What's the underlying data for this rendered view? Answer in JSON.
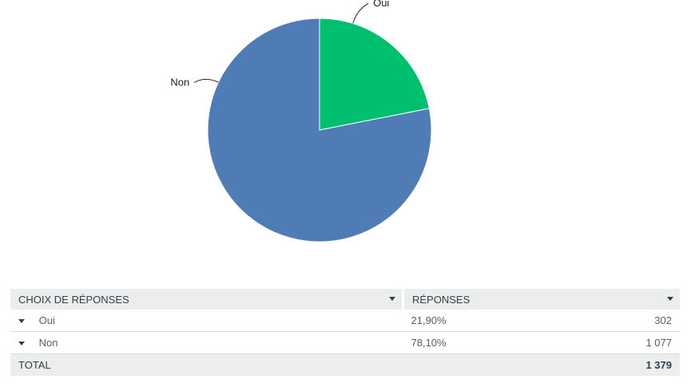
{
  "chart_data": {
    "type": "pie",
    "slices": [
      {
        "label": "Oui",
        "value": 21.9,
        "color": "#00bf6f"
      },
      {
        "label": "Non",
        "value": 78.1,
        "color": "#507cb6"
      }
    ],
    "start_angle_deg": 0,
    "direction": "clockwise"
  },
  "table": {
    "headers": {
      "choices": "CHOIX DE RÉPONSES",
      "responses": "RÉPONSES"
    },
    "rows": [
      {
        "label": "Oui",
        "percent": "21,90%",
        "count": "302"
      },
      {
        "label": "Non",
        "percent": "78,10%",
        "count": "1 077"
      }
    ],
    "total": {
      "label": "TOTAL",
      "count": "1 379"
    }
  }
}
